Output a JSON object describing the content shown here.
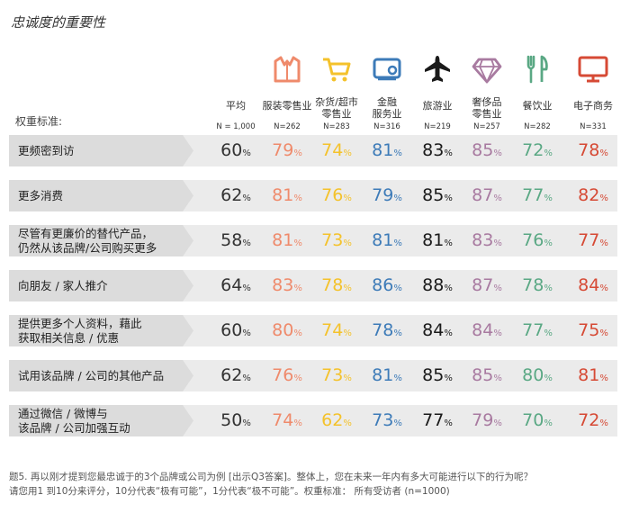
{
  "title": "忠诚度的重要性",
  "weight_label": "权重标准:",
  "columns": [
    {
      "label": "平均",
      "n": "N = 1,000",
      "color": "#333333",
      "icon": "none"
    },
    {
      "label": "服装零售业",
      "n": "N=262",
      "color": "#ef8a6b",
      "icon": "shirt-icon"
    },
    {
      "label": "杂货/超市零售业",
      "n": "N=283",
      "color": "#f4c22b",
      "icon": "shopping-cart-icon"
    },
    {
      "label": "金融服务业",
      "n": "N=316",
      "color": "#3d7bb8",
      "icon": "payment-card-icon"
    },
    {
      "label": "旅游业",
      "n": "N=219",
      "color": "#1a1a1a",
      "icon": "airplane-icon"
    },
    {
      "label": "奢侈品零售业",
      "n": "N=257",
      "color": "#a87aa0",
      "icon": "diamond-icon"
    },
    {
      "label": "餐饮业",
      "n": "N=282",
      "color": "#5aa884",
      "icon": "fork-knife-icon"
    },
    {
      "label": "电子商务",
      "n": "N=331",
      "color": "#d64a35",
      "icon": "monitor-icon"
    }
  ],
  "chart_data": {
    "type": "table",
    "unit": "%",
    "rows": [
      {
        "label": "更频密到访",
        "values": [
          60,
          79,
          74,
          81,
          83,
          85,
          72,
          78
        ]
      },
      {
        "label": "更多消费",
        "values": [
          62,
          81,
          76,
          79,
          85,
          87,
          77,
          82
        ]
      },
      {
        "label": "尽管有更廉价的替代产品，仍然从该品牌/公司购买更多",
        "values": [
          58,
          81,
          73,
          81,
          81,
          83,
          76,
          77
        ]
      },
      {
        "label": "向朋友 / 家人推介",
        "values": [
          64,
          83,
          78,
          86,
          88,
          87,
          78,
          84
        ]
      },
      {
        "label": "提供更多个人资料，藉此获取相关信息 / 优惠",
        "values": [
          60,
          80,
          74,
          78,
          84,
          84,
          77,
          75
        ]
      },
      {
        "label": "试用该品牌 / 公司的其他产品",
        "values": [
          62,
          76,
          73,
          81,
          85,
          85,
          80,
          81
        ]
      },
      {
        "label": "通过微信 / 微博与该品牌 / 公司加强互动",
        "values": [
          50,
          74,
          62,
          73,
          77,
          79,
          70,
          72
        ]
      }
    ]
  },
  "footer": {
    "line1": "题5. 再以刚才提到您最忠诚于的3个品牌或公司为例 [出示Q3答案]。整体上，您在未来一年内有多大可能进行以下的行为呢？",
    "line2": "请您用1 到10分来评分，10分代表“极有可能”，1分代表“极不可能”。权重标准： 所有受访者 (n=1000)"
  }
}
